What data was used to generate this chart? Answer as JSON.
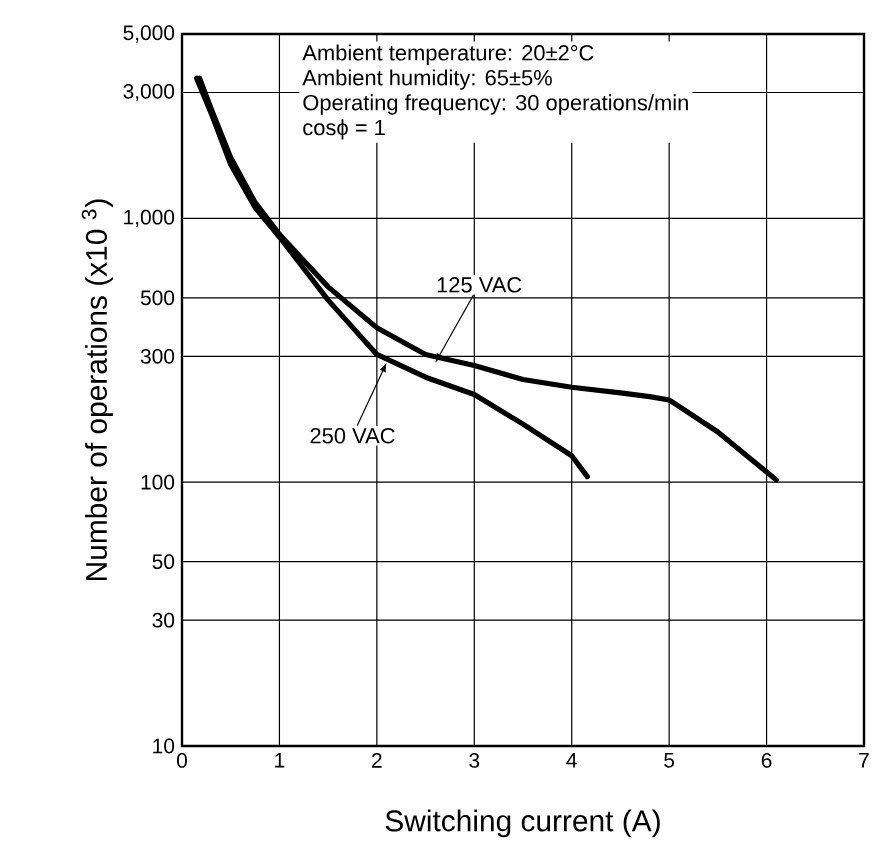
{
  "chart_data": {
    "type": "line",
    "xlabel": "Switching current (A)",
    "ylabel": "Number of operations (x10 $^{3}$)",
    "annotations": [
      "Ambient temperature: 20±2°C",
      "Ambient humidity: 65±5%",
      "Operating frequency: 30 operations/min",
      "cosϕ = 1"
    ],
    "series": [
      {
        "name": "125 VAC",
        "color": "#000000",
        "x": [
          0.18,
          0.3,
          0.5,
          0.75,
          1,
          1.5,
          2,
          2.5,
          3,
          3.5,
          4,
          4.5,
          4.8,
          5,
          5.5,
          6.1
        ],
        "values": [
          3400,
          2600,
          1700,
          1150,
          870,
          550,
          385,
          305,
          277,
          245,
          229,
          218,
          211,
          205,
          155,
          102
        ]
      },
      {
        "name": "250 VAC",
        "color": "#000000",
        "x": [
          0.15,
          0.3,
          0.5,
          0.75,
          1,
          1.5,
          2,
          2.5,
          3,
          3.5,
          4,
          4.16
        ],
        "values": [
          3400,
          2500,
          1600,
          1100,
          850,
          490,
          305,
          250,
          215,
          166,
          126,
          105
        ]
      }
    ],
    "xlim": [
      0,
      7
    ],
    "xticks": [
      0,
      1,
      2,
      3,
      4,
      5,
      6,
      7
    ],
    "ylim": [
      10,
      5000
    ],
    "yticks": [
      10,
      30,
      50,
      100,
      300,
      500,
      {
        "value": 1000,
        "label": "1,000"
      },
      {
        "value": 3000,
        "label": "3,000"
      },
      {
        "value": 5000,
        "label": "5,000"
      }
    ],
    "log": "y",
    "grid": true,
    "marker": "none",
    "line_style": "solid"
  }
}
